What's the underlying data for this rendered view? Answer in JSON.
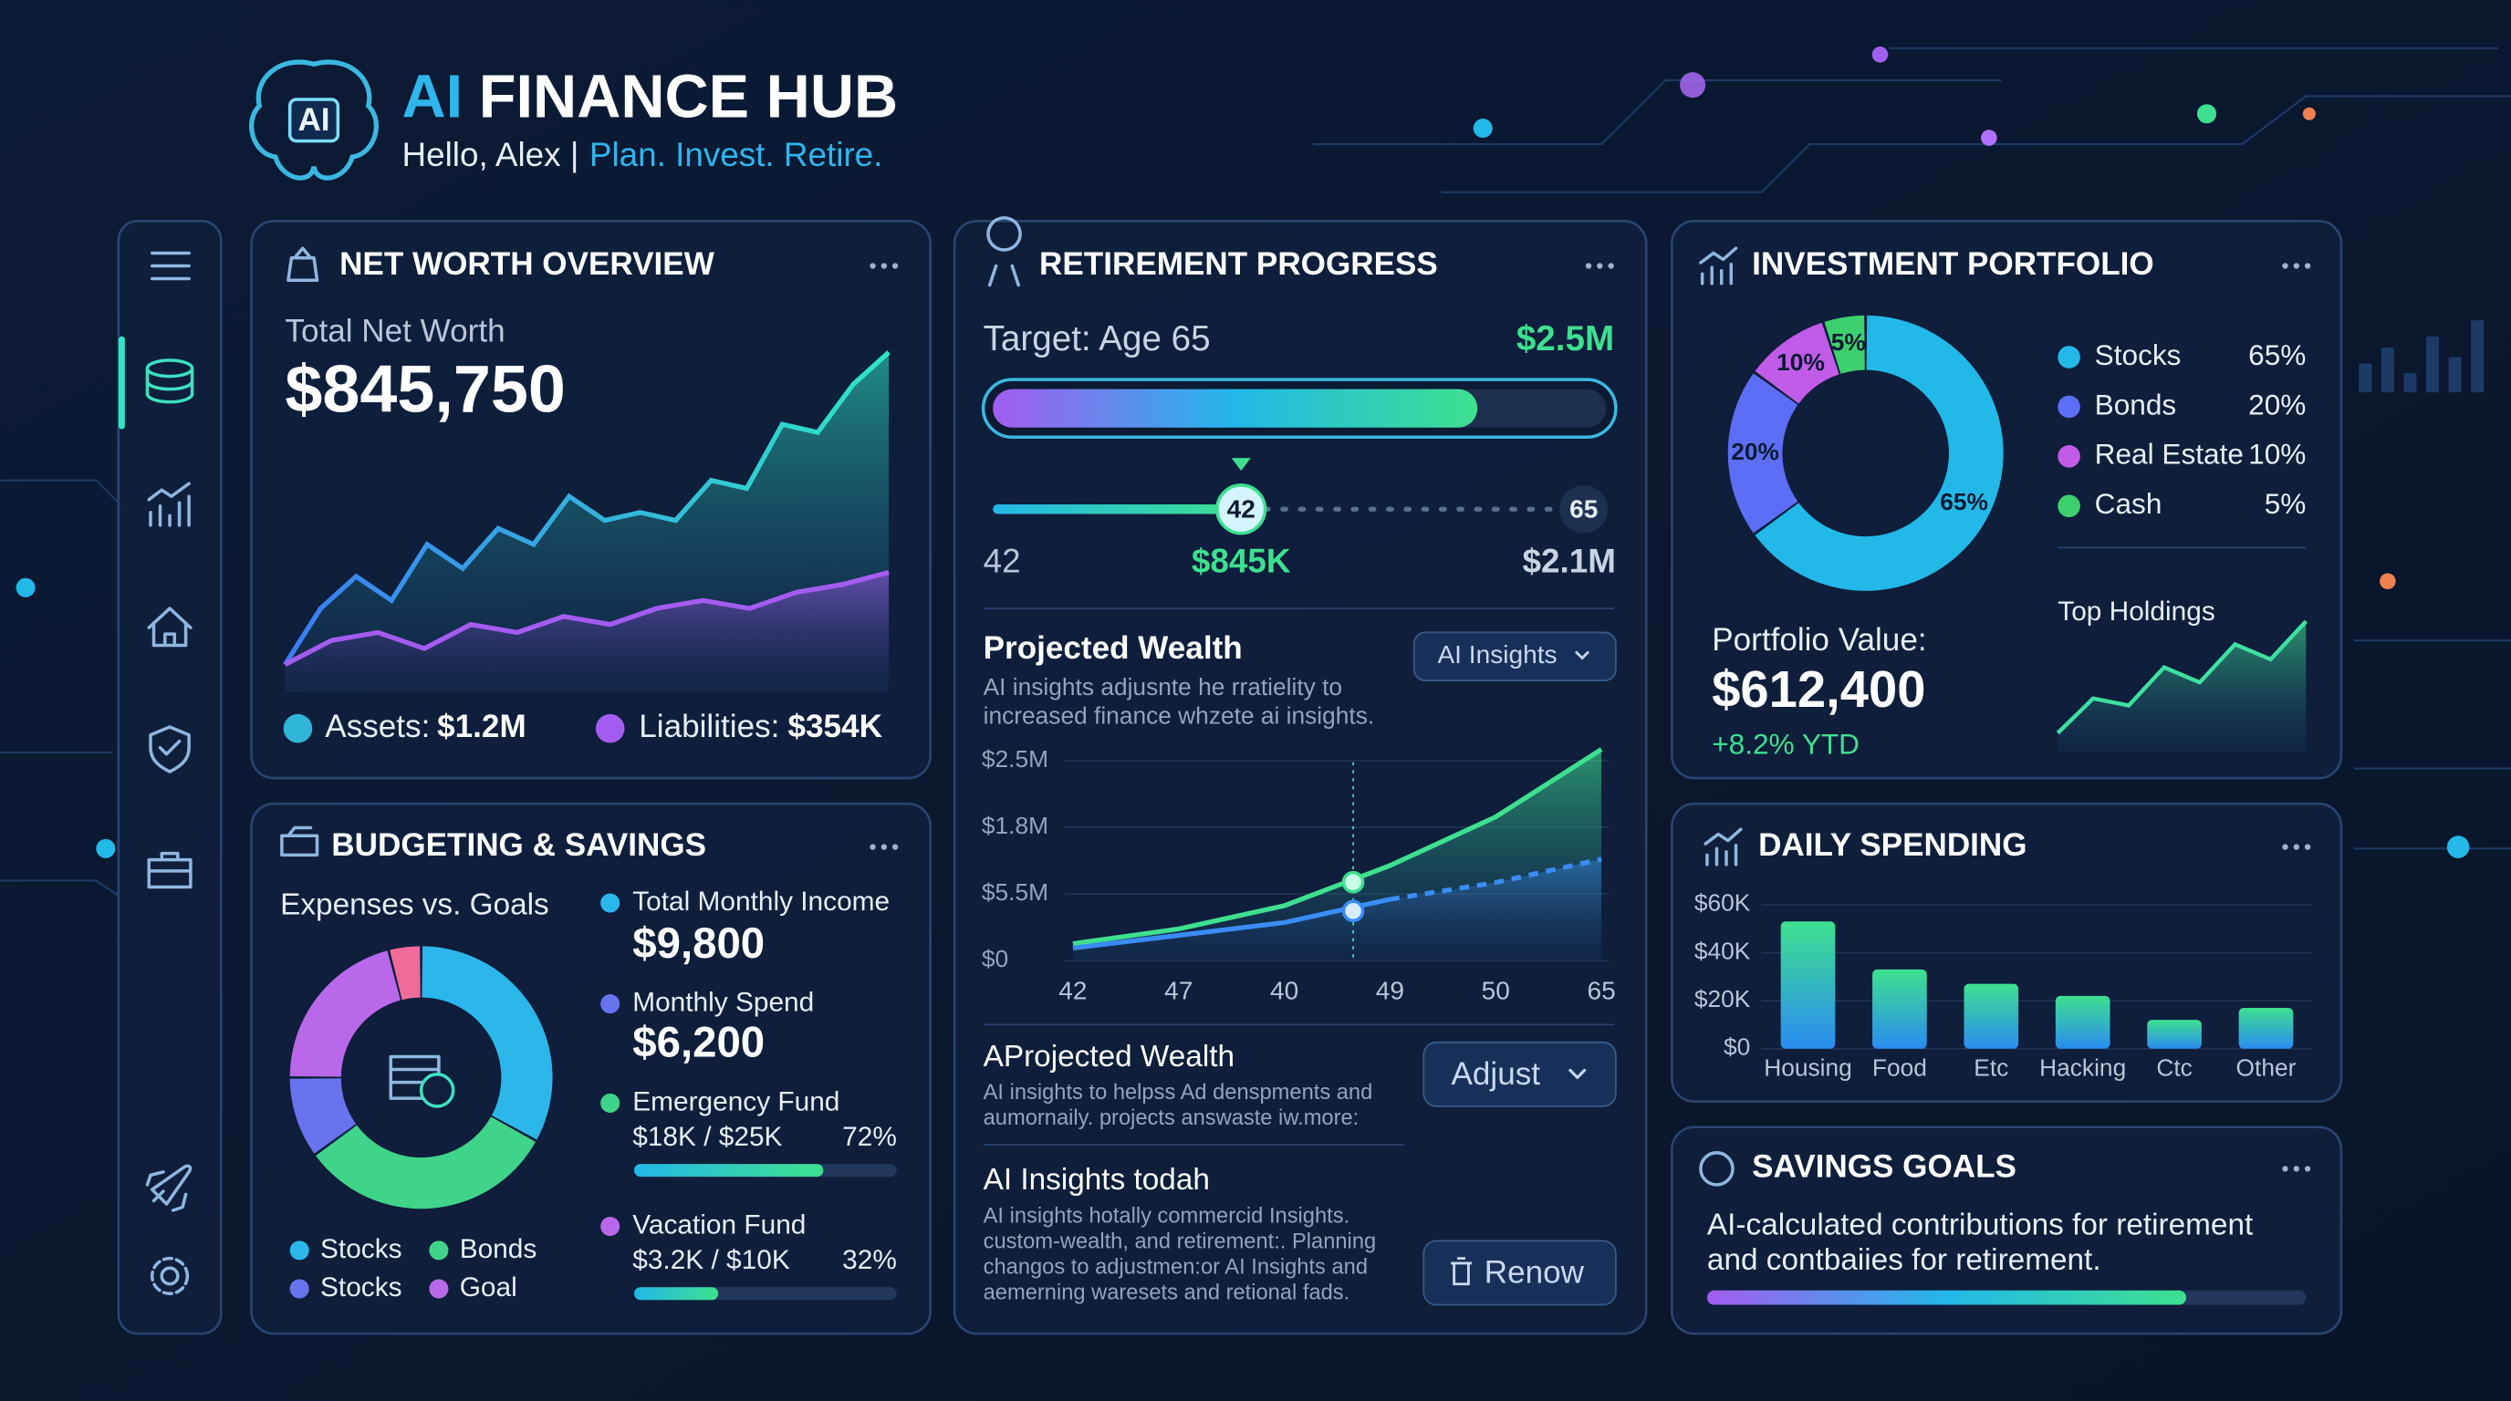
{
  "header": {
    "logo": "AI",
    "title_accent": "AI",
    "title": "FINANCE HUB",
    "greeting": "Hello, Alex |",
    "tagline": "Plan. Invest. Retire."
  },
  "net_worth": {
    "title": "NET WORTH OVERVIEW",
    "label": "Total Net Worth",
    "value": "$845,750",
    "chart": {
      "type": "area",
      "ylim": [
        0,
        100
      ],
      "series": [
        {
          "color": "#2ee6c5",
          "values": [
            18,
            32,
            40,
            34,
            48,
            42,
            52,
            48,
            60,
            54,
            56,
            54,
            64,
            62,
            78,
            76,
            88,
            96
          ]
        },
        {
          "color": "#a35cf0",
          "values": [
            18,
            24,
            26,
            22,
            28,
            26,
            30,
            28,
            32,
            34,
            32,
            36,
            38,
            41
          ]
        }
      ]
    },
    "legend": [
      {
        "label": "Assets:",
        "value": "$1.2M",
        "color": "#2fb6d6"
      },
      {
        "label": "Liabilities:",
        "value": "$354K",
        "color": "#a35cf0"
      }
    ]
  },
  "budget": {
    "title": "BUDGETING & SAVINGS",
    "subtitle": "Expenses vs. Goals",
    "donut": {
      "type": "pie",
      "values": [
        33,
        32,
        10,
        21,
        4
      ],
      "colors": [
        "#2bb7ea",
        "#3fd48a",
        "#6a73ee",
        "#b868e8",
        "#f06a9a"
      ]
    },
    "legend": [
      {
        "label": "Stocks",
        "color": "#2bb7ea"
      },
      {
        "label": "Bonds",
        "color": "#3fd48a"
      },
      {
        "label": "Stocks",
        "color": "#6a73ee"
      },
      {
        "label": "Goal",
        "color": "#b868e8"
      }
    ],
    "items": [
      {
        "label": "Total Monthly Income",
        "value": "$9,800",
        "color": "#2bb7ea"
      },
      {
        "label": "Monthly Spend",
        "value": "$6,200",
        "color": "#6a73ee"
      }
    ],
    "goals": [
      {
        "label": "Emergency Fund",
        "amount": "$18K / $25K",
        "progress": 72,
        "progress_label": "72%",
        "color": "#3fd48a"
      },
      {
        "label": "Vacation Fund",
        "amount": "$3.2K / $10K",
        "progress": 32,
        "progress_label": "32%",
        "color": "#b868e8"
      }
    ]
  },
  "retirement": {
    "title": "RETIREMENT PROGRESS",
    "target_label": "Target: Age 65",
    "target_value": "$2.5M",
    "progress": 79,
    "slider": {
      "current": "42",
      "end": "65",
      "start_label": "42",
      "current_value": "$845K",
      "end_value": "$2.1M"
    },
    "projection": {
      "title": "Projected Wealth",
      "description": [
        "AI insights adjusnte he rratielity to",
        "increased finance whzete ai insights."
      ],
      "button": "AI Insights",
      "chart": {
        "type": "line",
        "y_labels": [
          "$2.5M",
          "$1.8M",
          "$5.5M",
          "$0"
        ],
        "categories": [
          "42",
          "47",
          "40",
          "49",
          "50",
          "65"
        ],
        "ylim": [
          0,
          100
        ],
        "series": [
          {
            "color": "#3ee08f",
            "values": [
              8,
              15,
              26,
              45,
              68,
              100
            ]
          },
          {
            "color": "#3b8cf5",
            "values": [
              6,
              12,
              18,
              29,
              37,
              48
            ]
          }
        ]
      }
    },
    "panels": [
      {
        "title": "AProjected Wealth",
        "description": [
          "AI insights to helpss Ad denspments and",
          "aumornaily. projects answaste iw.more:"
        ],
        "button": "Adjust"
      },
      {
        "title": "AI Insights todah",
        "description": [
          "AI insights hotally commercid Insights.",
          "custom-wealth, and retirement:. Planning",
          "changos to adjustmen:or AI Insights and",
          "aemerning waresets and retional fads."
        ],
        "button": "Renow"
      }
    ]
  },
  "portfolio": {
    "title": "INVESTMENT PORTFOLIO",
    "chart": {
      "type": "pie",
      "values": [
        65,
        20,
        10,
        5
      ],
      "value_labels": [
        "65%",
        "20%",
        "10%",
        "5%"
      ],
      "colors": [
        "#22b8e8",
        "#5b6ef5",
        "#c05ce8",
        "#3ecf6e"
      ]
    },
    "legend": [
      {
        "label": "Stocks",
        "value": "65%"
      },
      {
        "label": "Bonds",
        "value": "20%"
      },
      {
        "label": "Real Estate",
        "value": "10%"
      },
      {
        "label": "Cash",
        "value": "5%"
      }
    ],
    "value_label": "Portfolio Value:",
    "value": "$612,400",
    "change": "+8.2% YTD",
    "holdings": {
      "title": "Top Holdings",
      "chart": {
        "type": "line",
        "ylim": [
          0,
          100
        ],
        "values": [
          3,
          33,
          27,
          60,
          47,
          80,
          67,
          100
        ],
        "color": "#3ee0a0"
      }
    }
  },
  "daily_spending": {
    "title": "DAILY SPENDING",
    "chart": {
      "type": "bar",
      "categories": [
        "Housing",
        "Food",
        "Etc",
        "Hacking",
        "Ctc",
        "Other"
      ],
      "values": [
        53000,
        33000,
        27000,
        22000,
        12000,
        17000
      ],
      "ylim": [
        0,
        60000
      ],
      "yticks": [
        {
          "value": 60000,
          "label": "$60K"
        },
        {
          "value": 40000,
          "label": "$40K"
        },
        {
          "value": 20000,
          "label": "$20K"
        },
        {
          "value": 0,
          "label": "$0"
        }
      ]
    }
  },
  "savings": {
    "title": "SAVINGS GOALS",
    "description": [
      "AI-calculated contributions for retirement",
      "and contbaiies for retirement."
    ],
    "progress": 80
  }
}
